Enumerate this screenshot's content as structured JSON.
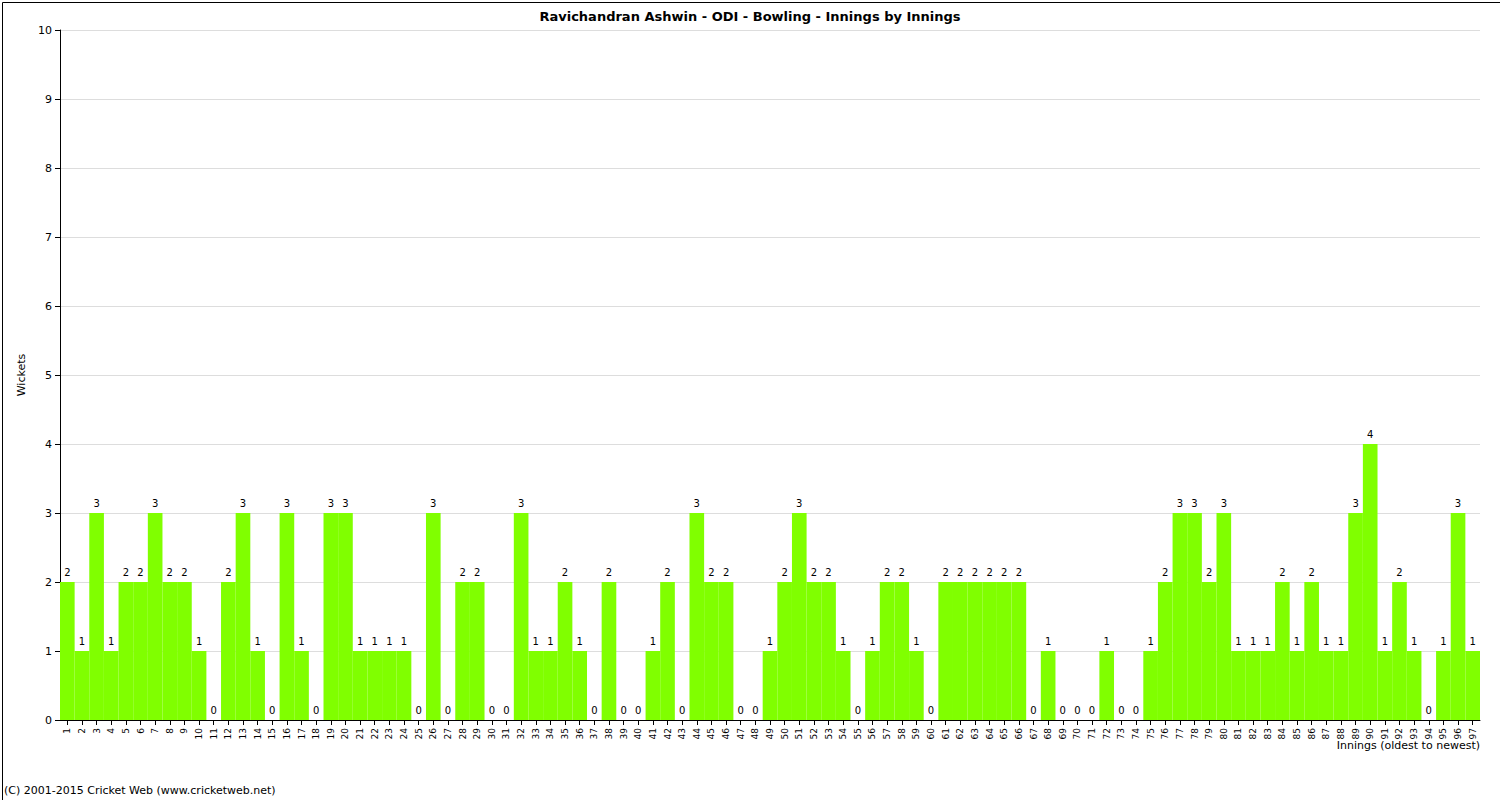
{
  "chart_data": {
    "type": "bar",
    "title": "Ravichandran Ashwin - ODI - Bowling - Innings by Innings",
    "x_label": "Innings (oldest to newest)",
    "y_label": "Wickets",
    "annotations": [
      "(C) 2001-2015 Cricket Web (www.cricketweb.net)"
    ],
    "categories": [
      "1",
      "2",
      "3",
      "4",
      "5",
      "6",
      "7",
      "8",
      "9",
      "10",
      "11",
      "12",
      "13",
      "14",
      "15",
      "16",
      "17",
      "18",
      "19",
      "20",
      "21",
      "22",
      "23",
      "24",
      "25",
      "26",
      "27",
      "28",
      "29",
      "30",
      "31",
      "32",
      "33",
      "34",
      "35",
      "36",
      "37",
      "38",
      "39",
      "40",
      "41",
      "42",
      "43",
      "44",
      "45",
      "46",
      "47",
      "48",
      "49",
      "50",
      "51",
      "52",
      "53",
      "54",
      "55",
      "56",
      "57",
      "58",
      "59",
      "60",
      "61",
      "62",
      "63",
      "64",
      "65",
      "66",
      "67",
      "68",
      "69",
      "70",
      "71",
      "72",
      "73",
      "74",
      "75",
      "76",
      "77",
      "78",
      "79",
      "80",
      "81",
      "82",
      "83",
      "84",
      "85",
      "86",
      "87",
      "88",
      "89",
      "90",
      "91",
      "92",
      "93",
      "94",
      "95",
      "96",
      "97"
    ],
    "values": [
      2,
      1,
      3,
      1,
      2,
      2,
      3,
      2,
      2,
      1,
      0,
      2,
      3,
      1,
      0,
      3,
      1,
      0,
      3,
      3,
      1,
      1,
      1,
      1,
      0,
      3,
      0,
      2,
      2,
      0,
      0,
      3,
      1,
      1,
      2,
      1,
      0,
      2,
      0,
      0,
      1,
      2,
      0,
      3,
      2,
      2,
      0,
      0,
      1,
      2,
      3,
      2,
      2,
      1,
      0,
      1,
      2,
      2,
      1,
      0,
      2,
      2,
      2,
      2,
      2,
      2,
      0,
      1,
      0,
      0,
      0,
      1,
      0,
      0,
      1,
      2,
      3,
      3,
      2,
      3,
      1,
      1,
      1,
      2,
      1,
      2,
      1,
      1,
      3,
      4,
      1,
      2,
      1,
      0,
      1,
      3,
      1
    ],
    "color": "#80ff00",
    "ylim": [
      0,
      10
    ],
    "yticks": [
      0,
      1,
      2,
      3,
      4,
      5,
      6,
      7,
      8,
      9,
      10
    ],
    "grid": true,
    "data_labels": true
  }
}
